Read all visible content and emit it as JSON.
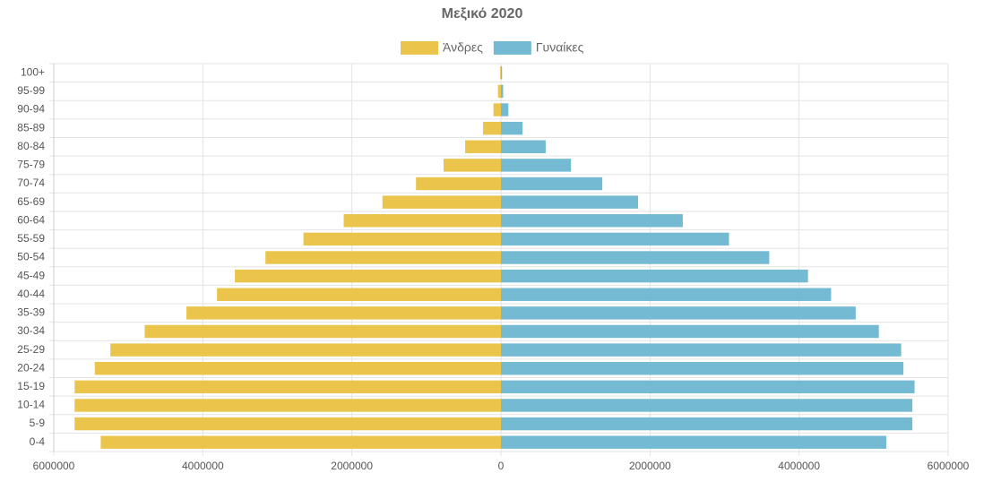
{
  "chart_data": {
    "type": "pyramid",
    "title": "Μεξικό 2020",
    "categories": [
      "100+",
      "95-99",
      "90-94",
      "85-89",
      "80-84",
      "75-79",
      "70-74",
      "65-69",
      "60-64",
      "55-59",
      "50-54",
      "45-49",
      "40-44",
      "35-39",
      "30-34",
      "25-29",
      "20-24",
      "15-19",
      "10-14",
      "5-9",
      "0-4"
    ],
    "series": [
      {
        "name": "Άνδρες",
        "color": "#ebc44c",
        "values": [
          -10000,
          -40000,
          -100000,
          -240000,
          -480000,
          -770000,
          -1140000,
          -1590000,
          -2110000,
          -2650000,
          -3160000,
          -3570000,
          -3810000,
          -4220000,
          -4780000,
          -5240000,
          -5450000,
          -5720000,
          -5720000,
          -5720000,
          -5370000
        ]
      },
      {
        "name": "Γυναίκες",
        "color": "#74bad3",
        "values": [
          15000,
          30000,
          100000,
          290000,
          600000,
          940000,
          1360000,
          1840000,
          2440000,
          3060000,
          3600000,
          4120000,
          4430000,
          4760000,
          5070000,
          5370000,
          5400000,
          5550000,
          5520000,
          5520000,
          5170000
        ]
      }
    ],
    "xlim": [
      -6000000,
      6000000
    ],
    "xticks": [
      {
        "value": -6000000,
        "label": "6000000"
      },
      {
        "value": -4000000,
        "label": "4000000"
      },
      {
        "value": -2000000,
        "label": "2000000"
      },
      0,
      2000000,
      4000000,
      6000000
    ],
    "grid": true,
    "legend": "top"
  }
}
